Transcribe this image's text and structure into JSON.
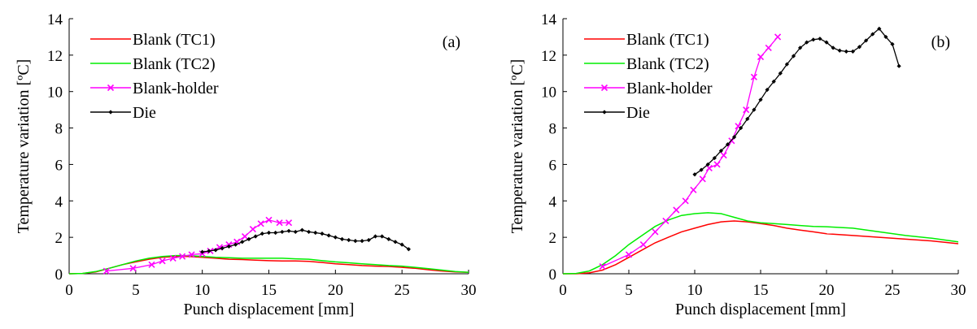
{
  "chart_data": [
    {
      "type": "line",
      "panel_label": "(a)",
      "xlabel": "Punch displacement [mm]",
      "ylabel": "Temperature variation [ºC]",
      "xlim": [
        0,
        30
      ],
      "ylim": [
        0,
        14
      ],
      "xticks": [
        0,
        5,
        10,
        15,
        20,
        25,
        30
      ],
      "yticks": [
        0,
        2,
        4,
        6,
        8,
        10,
        12,
        14
      ],
      "grid": false,
      "legend_position": "top-left",
      "series": [
        {
          "name": "Blank (TC1)",
          "color": "#ff0000",
          "marker": "none",
          "x": [
            0,
            1,
            2,
            3,
            4,
            5,
            6,
            7,
            8,
            9,
            10,
            11,
            12,
            13,
            14,
            15,
            16,
            17,
            18,
            19,
            20,
            21,
            22,
            23,
            24,
            25,
            26,
            27,
            28,
            29,
            30
          ],
          "y": [
            0,
            0.02,
            0.1,
            0.3,
            0.5,
            0.65,
            0.8,
            0.9,
            0.95,
            0.95,
            0.9,
            0.85,
            0.8,
            0.78,
            0.75,
            0.72,
            0.7,
            0.7,
            0.68,
            0.62,
            0.55,
            0.5,
            0.45,
            0.42,
            0.4,
            0.35,
            0.3,
            0.22,
            0.15,
            0.1,
            0.08
          ]
        },
        {
          "name": "Blank (TC2)",
          "color": "#00ee00",
          "marker": "none",
          "x": [
            0,
            1,
            2,
            3,
            4,
            5,
            6,
            7,
            8,
            9,
            10,
            11,
            12,
            13,
            14,
            15,
            16,
            17,
            18,
            19,
            20,
            21,
            22,
            23,
            24,
            25,
            26,
            27,
            28,
            29,
            30
          ],
          "y": [
            0,
            0.02,
            0.12,
            0.3,
            0.5,
            0.7,
            0.85,
            0.95,
            1.0,
            1.0,
            0.95,
            0.9,
            0.88,
            0.85,
            0.85,
            0.85,
            0.85,
            0.82,
            0.8,
            0.72,
            0.65,
            0.6,
            0.55,
            0.5,
            0.45,
            0.42,
            0.35,
            0.28,
            0.2,
            0.12,
            0.08
          ]
        },
        {
          "name": "Blank-holder",
          "color": "#ff00ff",
          "marker": "x",
          "x": [
            2.8,
            4.8,
            6.2,
            7.0,
            7.8,
            8.5,
            9.2,
            10.0,
            10.6,
            11.3,
            12.0,
            12.6,
            13.2,
            13.8,
            14.4,
            15.0,
            15.8,
            16.5
          ],
          "y": [
            0.15,
            0.3,
            0.5,
            0.7,
            0.85,
            0.95,
            1.05,
            1.1,
            1.25,
            1.45,
            1.6,
            1.75,
            2.05,
            2.45,
            2.75,
            2.95,
            2.8,
            2.8
          ]
        },
        {
          "name": "Die",
          "color": "#000000",
          "marker": "diamond",
          "x": [
            10.0,
            10.5,
            11.0,
            11.5,
            12.0,
            12.5,
            13.0,
            13.5,
            14.0,
            14.5,
            15.0,
            15.5,
            16.0,
            16.5,
            17.0,
            17.5,
            18.0,
            18.5,
            19.0,
            19.5,
            20.0,
            20.5,
            21.0,
            21.5,
            22.0,
            22.5,
            23.0,
            23.5,
            24.0,
            24.5,
            25.0,
            25.5
          ],
          "y": [
            1.2,
            1.25,
            1.3,
            1.4,
            1.5,
            1.6,
            1.75,
            1.9,
            2.05,
            2.2,
            2.25,
            2.25,
            2.3,
            2.35,
            2.3,
            2.4,
            2.3,
            2.25,
            2.2,
            2.1,
            2.0,
            1.9,
            1.85,
            1.8,
            1.8,
            1.85,
            2.05,
            2.05,
            1.9,
            1.75,
            1.6,
            1.35
          ]
        }
      ]
    },
    {
      "type": "line",
      "panel_label": "(b)",
      "xlabel": "Punch displacement [mm]",
      "ylabel": "Temperature variation [ºC]",
      "xlim": [
        0,
        30
      ],
      "ylim": [
        0,
        14
      ],
      "xticks": [
        0,
        5,
        10,
        15,
        20,
        25,
        30
      ],
      "yticks": [
        0,
        2,
        4,
        6,
        8,
        10,
        12,
        14
      ],
      "grid": false,
      "legend_position": "top-left",
      "series": [
        {
          "name": "Blank (TC1)",
          "color": "#ff0000",
          "marker": "none",
          "x": [
            0,
            1,
            2,
            3,
            4,
            5,
            6,
            7,
            8,
            9,
            10,
            11,
            12,
            13,
            14,
            15,
            16,
            17,
            18,
            19,
            20,
            22,
            24,
            26,
            28,
            30
          ],
          "y": [
            0,
            0,
            0.05,
            0.2,
            0.5,
            0.9,
            1.3,
            1.7,
            2.0,
            2.3,
            2.5,
            2.7,
            2.85,
            2.9,
            2.85,
            2.75,
            2.65,
            2.5,
            2.4,
            2.3,
            2.2,
            2.1,
            2.0,
            1.9,
            1.8,
            1.65
          ]
        },
        {
          "name": "Blank (TC2)",
          "color": "#00ee00",
          "marker": "none",
          "x": [
            0,
            1,
            2,
            3,
            4,
            5,
            6,
            7,
            8,
            9,
            10,
            11,
            12,
            13,
            14,
            15,
            16,
            17,
            18,
            19,
            20,
            22,
            24,
            26,
            28,
            30
          ],
          "y": [
            0,
            0.02,
            0.15,
            0.5,
            1.0,
            1.6,
            2.1,
            2.6,
            2.95,
            3.2,
            3.3,
            3.35,
            3.3,
            3.1,
            2.9,
            2.8,
            2.75,
            2.7,
            2.65,
            2.6,
            2.58,
            2.5,
            2.3,
            2.1,
            1.95,
            1.75
          ]
        },
        {
          "name": "Blank-holder",
          "color": "#ff00ff",
          "marker": "x",
          "x": [
            3.0,
            5.0,
            6.1,
            7.0,
            7.8,
            8.6,
            9.3,
            9.9,
            10.6,
            11.1,
            11.7,
            12.2,
            12.8,
            13.3,
            13.9,
            14.5,
            15.0,
            15.6,
            16.3
          ],
          "y": [
            0.4,
            1.05,
            1.6,
            2.3,
            2.9,
            3.5,
            4.0,
            4.6,
            5.2,
            5.8,
            6.0,
            6.5,
            7.3,
            8.1,
            9.0,
            10.8,
            11.9,
            12.4,
            13.0
          ]
        },
        {
          "name": "Die",
          "color": "#000000",
          "marker": "diamond",
          "x": [
            10.0,
            10.5,
            11.0,
            11.5,
            12.0,
            12.5,
            13.0,
            13.5,
            14.0,
            14.5,
            15.0,
            15.5,
            16.0,
            16.5,
            17.0,
            17.5,
            18.0,
            18.5,
            19.0,
            19.5,
            20.0,
            20.5,
            21.0,
            21.5,
            22.0,
            22.5,
            23.0,
            23.5,
            24.0,
            24.5,
            25.0,
            25.5
          ],
          "y": [
            5.45,
            5.7,
            6.0,
            6.35,
            6.75,
            7.1,
            7.5,
            8.0,
            8.5,
            9.0,
            9.55,
            10.1,
            10.55,
            11.0,
            11.5,
            11.95,
            12.4,
            12.7,
            12.85,
            12.9,
            12.7,
            12.4,
            12.25,
            12.2,
            12.2,
            12.45,
            12.8,
            13.15,
            13.45,
            13.0,
            12.6,
            11.4
          ]
        }
      ]
    }
  ]
}
